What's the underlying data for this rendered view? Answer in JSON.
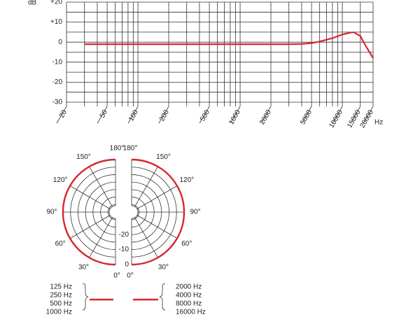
{
  "chart_data": [
    {
      "type": "line",
      "y_label": "dB",
      "x_label": "Hz",
      "log_x": true,
      "grid": true,
      "xlim": [
        20,
        20000
      ],
      "ylim": [
        -30,
        20
      ],
      "xticks": [
        20,
        50,
        100,
        200,
        500,
        1000,
        2000,
        5000,
        10000,
        15000,
        20000
      ],
      "x_minor_grid": [
        30,
        40,
        60,
        70,
        80,
        90,
        300,
        400,
        600,
        700,
        800,
        900,
        3000,
        4000,
        6000,
        7000,
        8000,
        9000
      ],
      "yticks": [
        {
          "value": 20,
          "label": "+20"
        },
        {
          "value": 10,
          "label": "+10"
        },
        0,
        -10,
        -20,
        -30
      ],
      "y_minor_grid": [
        15,
        5,
        -5,
        -15,
        -25
      ],
      "series": [
        {
          "color": "#d9262e",
          "x": [
            30,
            50,
            100,
            200,
            500,
            1000,
            2000,
            3000,
            4000,
            5000,
            6000,
            8000,
            10000,
            12000,
            13000,
            15000,
            17000,
            20000
          ],
          "values": [
            -1,
            -1,
            -1,
            -1,
            -1,
            -1,
            -1,
            -1,
            -0.9,
            -0.5,
            0.3,
            2,
            3.8,
            4.8,
            4.9,
            3,
            -2,
            -8
          ]
        }
      ]
    },
    {
      "type": "polar",
      "rlim": [
        -35,
        0
      ],
      "rticks": [
        -20,
        -10,
        0
      ],
      "r_minor_grid": [
        -30,
        -25,
        -15,
        -5
      ],
      "angle_ticks": [
        {
          "value": 0,
          "label": "0°"
        },
        {
          "value": 30,
          "label": "30°"
        },
        {
          "value": 60,
          "label": "60°"
        },
        {
          "value": 90,
          "label": "90°"
        },
        {
          "value": 120,
          "label": "120°"
        },
        {
          "value": 150,
          "label": "150°"
        },
        {
          "value": 180,
          "label": "180°"
        }
      ],
      "series": [
        {
          "side": "left",
          "names": [
            "125 Hz",
            "250 Hz",
            "500 Hz",
            "1000 Hz"
          ],
          "color": "#d9262e",
          "angles": [
            0,
            30,
            60,
            90,
            120,
            150,
            180
          ],
          "values": [
            0,
            0,
            0,
            0,
            0,
            0,
            0
          ]
        },
        {
          "side": "right",
          "names": [
            "2000 Hz",
            "4000 Hz",
            "8000 Hz",
            "16000 Hz"
          ],
          "color": "#d9262e",
          "angles": [
            0,
            30,
            60,
            90,
            120,
            150,
            180
          ],
          "values": [
            0,
            0,
            0,
            0,
            0,
            0,
            0
          ]
        }
      ]
    }
  ]
}
